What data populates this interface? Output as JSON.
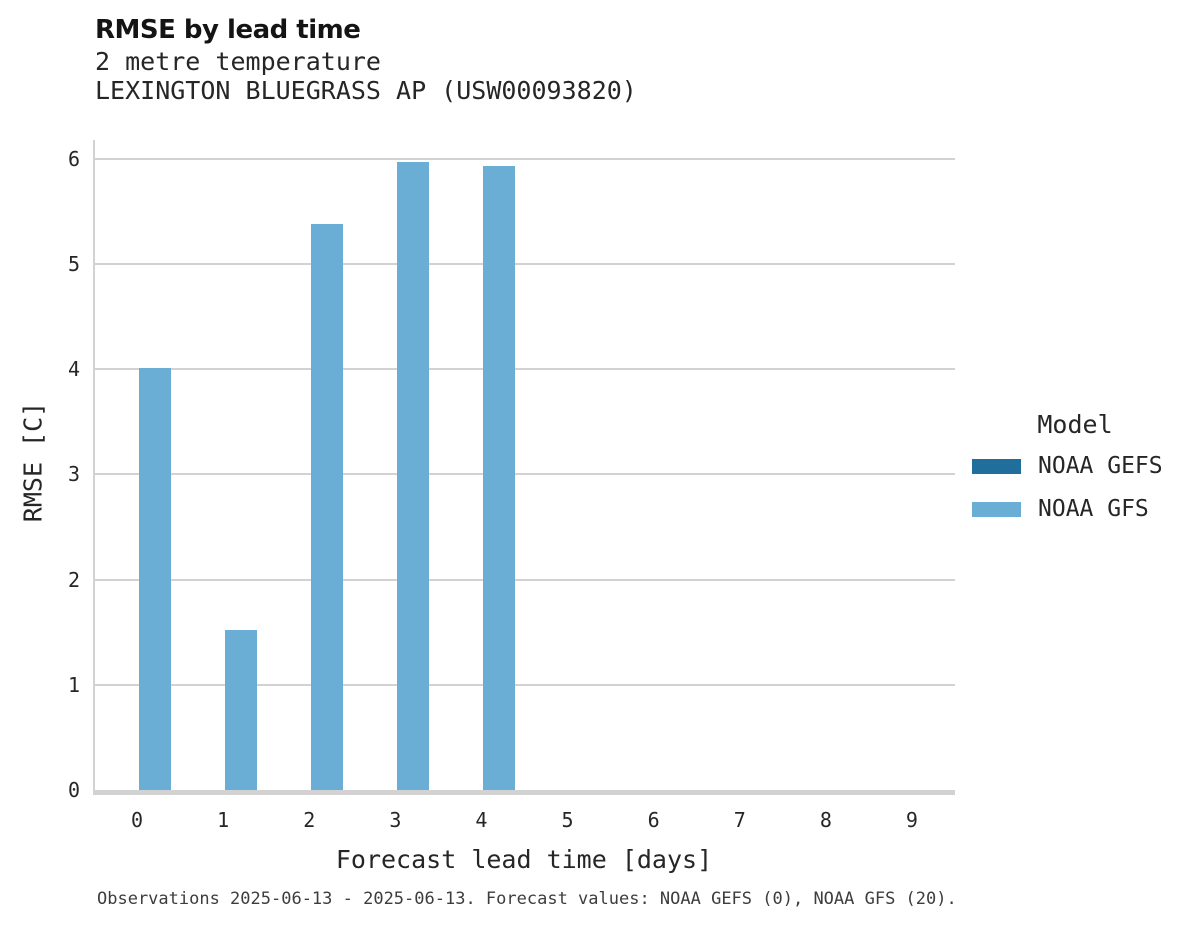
{
  "header": {
    "title": "RMSE by lead time",
    "subtitle1": "2 metre temperature",
    "subtitle2": "LEXINGTON BLUEGRASS AP (USW00093820)"
  },
  "chart_data": {
    "type": "bar",
    "title": "RMSE by lead time",
    "subtitle": [
      "2 metre temperature",
      "LEXINGTON BLUEGRASS AP (USW00093820)"
    ],
    "xlabel": "Forecast lead time [days]",
    "ylabel": "RMSE [C]",
    "categories": [
      "0",
      "1",
      "2",
      "3",
      "4",
      "5",
      "6",
      "7",
      "8",
      "9"
    ],
    "series": [
      {
        "name": "NOAA GEFS",
        "color": "#1f6e9c",
        "values": [
          null,
          null,
          null,
          null,
          null,
          null,
          null,
          null,
          null,
          null
        ]
      },
      {
        "name": "NOAA GFS",
        "color": "#6aaed6",
        "values": [
          4.01,
          1.52,
          5.38,
          5.97,
          5.93,
          null,
          null,
          null,
          null,
          null
        ]
      }
    ],
    "ylim": [
      0,
      6.18
    ],
    "yticks": [
      0,
      1,
      2,
      3,
      4,
      5,
      6
    ],
    "grid": true,
    "legend_title": "Model",
    "legend_position": "right"
  },
  "legend": {
    "title": "Model",
    "items": [
      {
        "label": "NOAA GEFS",
        "color": "#1f6e9c"
      },
      {
        "label": "NOAA GFS",
        "color": "#6aaed6"
      }
    ]
  },
  "footer": {
    "text": "Observations 2025-06-13 - 2025-06-13. Forecast values: NOAA GEFS (0), NOAA GFS (20)."
  },
  "colors": {
    "bar_light": "#6aaed6",
    "bar_dark": "#1f6e9c",
    "gridline": "#d2d2d2",
    "text": "#262626"
  }
}
